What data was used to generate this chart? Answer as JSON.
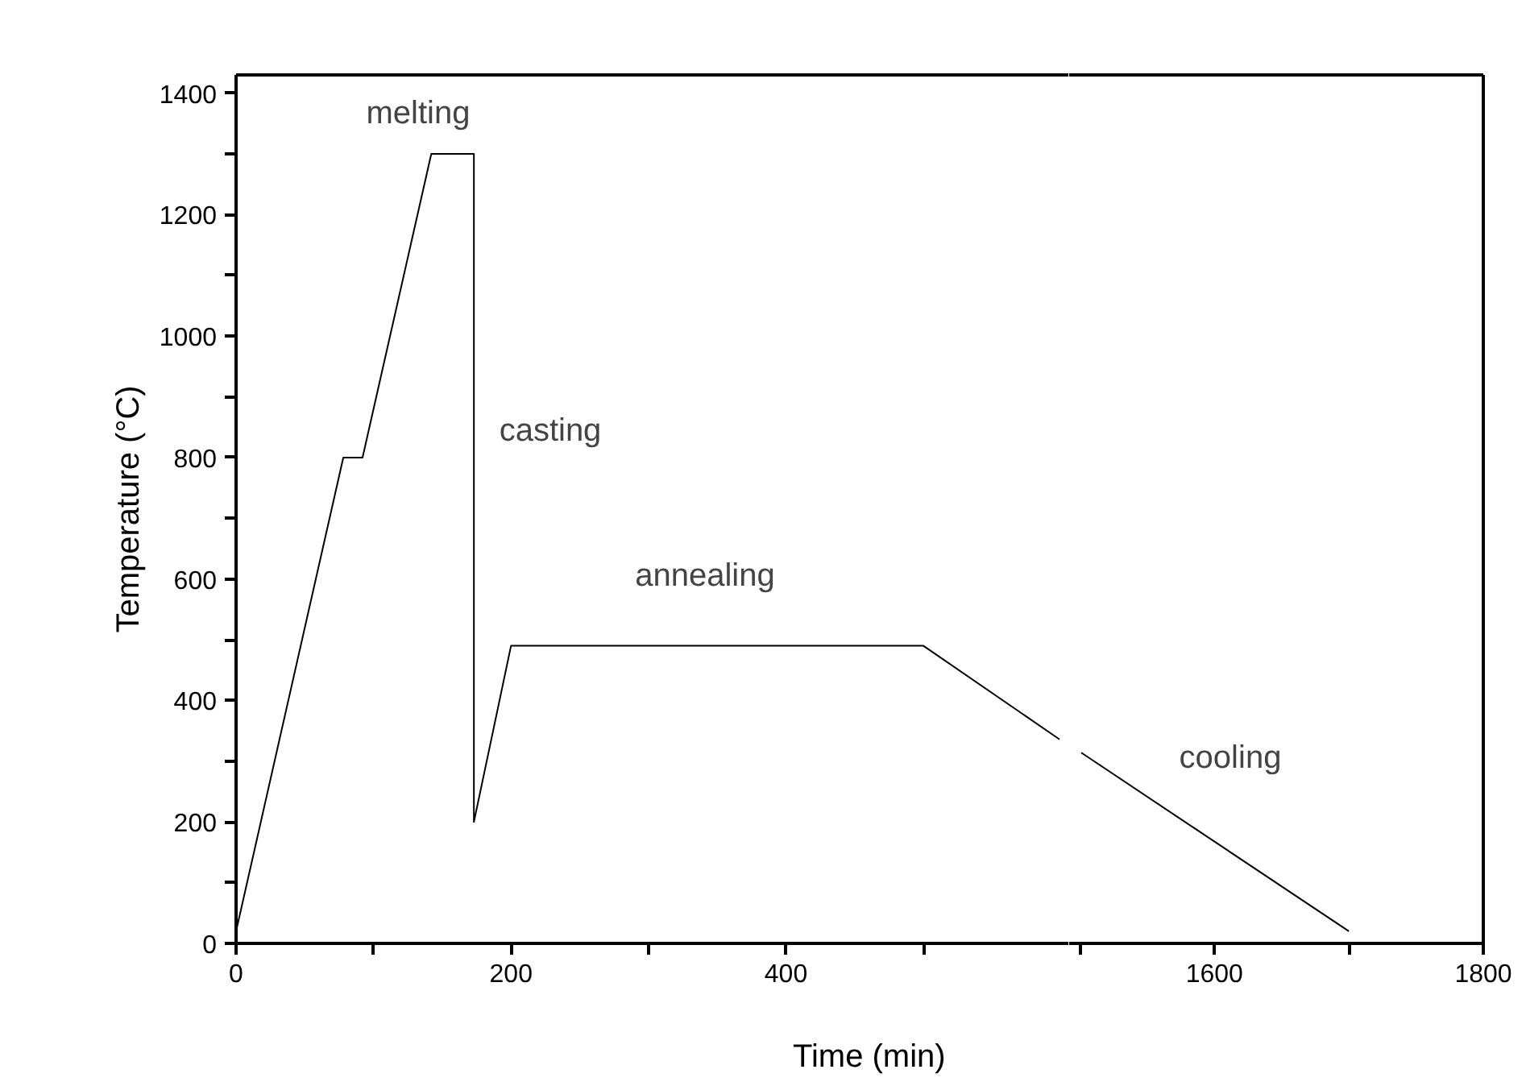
{
  "chart_data": [
    {
      "type": "line",
      "xlabel": "Time (min)",
      "ylabel": "Temperature (°C)",
      "series": [
        {
          "color": "#000000",
          "x": [
            0,
            78,
            92,
            142,
            173,
            173,
            200,
            500,
            599
          ],
          "values": [
            20,
            800,
            800,
            1300,
            1300,
            200,
            490,
            490,
            336
          ]
        }
      ],
      "xlim": [
        0,
        606
      ],
      "xticks": [
        0,
        {
          "value": 100,
          "label": null
        },
        200,
        {
          "value": 300,
          "label": null
        },
        400,
        {
          "value": 500,
          "label": null
        }
      ],
      "ylim": [
        0,
        1430
      ],
      "yticks": [
        0,
        {
          "value": 100,
          "label": null
        },
        200,
        {
          "value": 300,
          "label": null
        },
        400,
        {
          "value": 500,
          "label": null
        },
        600,
        {
          "value": 700,
          "label": null
        },
        800,
        {
          "value": 900,
          "label": null
        },
        1000,
        {
          "value": 1100,
          "label": null
        },
        1200,
        {
          "value": 1300,
          "label": null
        },
        1400
      ],
      "annotations": [
        "melting",
        "casting",
        "annealing"
      ],
      "grid": false
    },
    {
      "type": "line",
      "series": [
        {
          "color": "#000000",
          "x": [
            1501,
            1700
          ],
          "values": [
            314,
            20
          ]
        }
      ],
      "xlim": [
        1492,
        1800
      ],
      "xticks": [
        {
          "value": 1500,
          "label": null
        },
        1600,
        {
          "value": 1700,
          "label": null
        },
        1800
      ],
      "ylim": [
        0,
        1430
      ],
      "yticks": [
        0,
        200,
        400,
        600,
        800,
        1000,
        1200,
        1400
      ],
      "tick_labels": "x",
      "annotations": [
        "cooling"
      ],
      "grid": false
    }
  ]
}
